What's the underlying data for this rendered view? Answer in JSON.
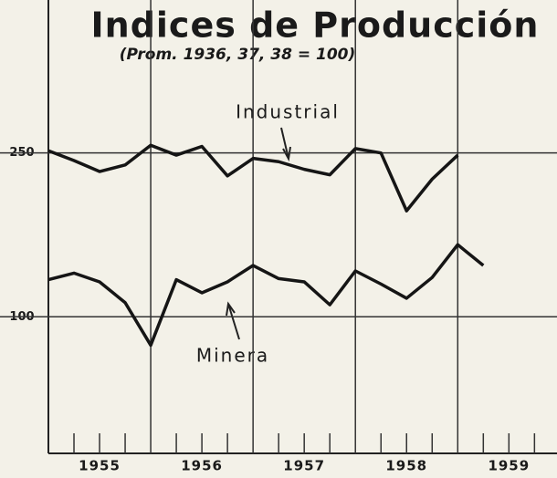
{
  "chart_data": {
    "type": "line",
    "title": "Indices de Producción",
    "subtitle": "(Prom. 1936, 37, 38 = 100)",
    "x": [
      1955,
      1955.25,
      1955.5,
      1955.75,
      1956,
      1956.25,
      1956.5,
      1956.75,
      1957,
      1957.25,
      1957.5,
      1957.75,
      1958,
      1958.25,
      1958.5,
      1958.75,
      1959,
      1959.25
    ],
    "series": [
      {
        "name": "Industrial",
        "color": "#151515",
        "values": [
          252,
          243,
          233,
          239,
          257,
          248,
          256,
          229,
          245,
          242,
          235,
          230,
          254,
          250,
          197,
          226,
          248,
          null
        ]
      },
      {
        "name": "Minera",
        "color": "#151515",
        "values": [
          134,
          140,
          132,
          113,
          74,
          134,
          122,
          132,
          147,
          135,
          132,
          111,
          142,
          130,
          117,
          136,
          166,
          147
        ]
      }
    ],
    "xlim": [
      1955,
      1959.97
    ],
    "xticks": [
      {
        "value": 1955.5,
        "label": "1955"
      },
      {
        "value": 1956.5,
        "label": "1956"
      },
      {
        "value": 1957.5,
        "label": "1957"
      },
      {
        "value": 1958.5,
        "label": "1958"
      },
      {
        "value": 1959.5,
        "label": "1959"
      }
    ],
    "xgrid": [
      1956,
      1957,
      1958,
      1959
    ],
    "xminorticks": [
      1955.25,
      1955.5,
      1955.75,
      1956.25,
      1956.5,
      1956.75,
      1957.25,
      1957.5,
      1957.75,
      1958.25,
      1958.5,
      1958.75,
      1959.25,
      1959.5,
      1959.75
    ],
    "ylim": [
      -25,
      390
    ],
    "yticks": [
      100,
      250
    ],
    "grid": true,
    "annotations": [
      {
        "text": "Industrial",
        "series": 0
      },
      {
        "text": "Minera",
        "series": 1
      }
    ]
  }
}
